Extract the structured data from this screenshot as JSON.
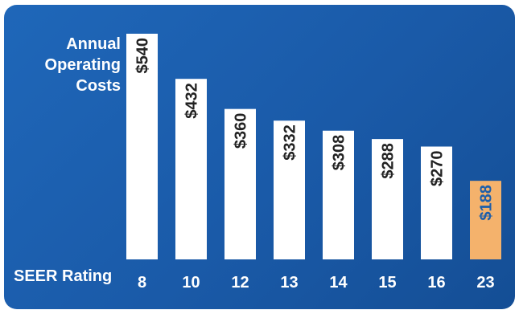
{
  "chart_data": {
    "type": "bar",
    "ylabel": [
      "Annual",
      "Operating",
      "Costs"
    ],
    "xlabel": "SEER Rating",
    "categories": [
      "8",
      "10",
      "12",
      "13",
      "14",
      "15",
      "16",
      "23"
    ],
    "values": [
      540,
      432,
      360,
      332,
      308,
      288,
      270,
      188
    ],
    "labels": [
      "$540",
      "$432",
      "$360",
      "$332",
      "$308",
      "$288",
      "$270",
      "$188"
    ],
    "highlight_index": 7,
    "ylim": [
      0,
      540
    ],
    "grid": false,
    "colors": {
      "background": "#1b5eab",
      "bar": "#ffffff",
      "highlight": "#f4b26c",
      "label": "#222222",
      "highlight_label": "#1b5eab"
    }
  }
}
